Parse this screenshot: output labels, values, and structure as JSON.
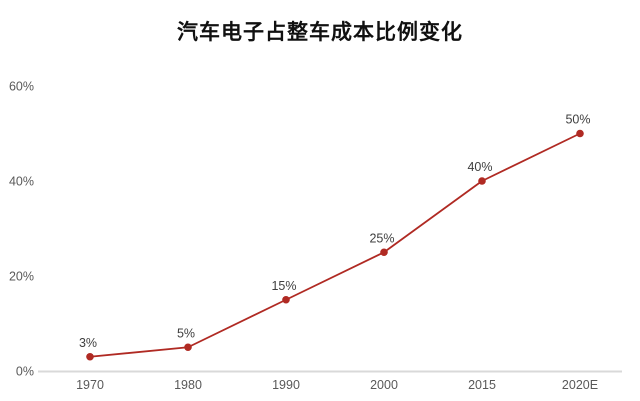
{
  "page": {
    "background": "#ffffff"
  },
  "chart_data": {
    "type": "line",
    "title": "汽车电子占整车成本比例变化",
    "categories": [
      "1970",
      "1980",
      "1990",
      "2000",
      "2015",
      "2020E"
    ],
    "values": [
      3,
      5,
      15,
      25,
      40,
      50
    ],
    "point_labels": [
      "3%",
      "5%",
      "15%",
      "25%",
      "40%",
      "50%"
    ],
    "xlabel": "",
    "ylabel": "",
    "ylim": [
      0,
      60
    ],
    "yticks": [
      0,
      20,
      40,
      60
    ],
    "ytick_labels": [
      "0%",
      "20%",
      "40%",
      "60%"
    ],
    "grid": false,
    "legend": "none",
    "marker": "circle",
    "colors": {
      "line": "#b02a23",
      "marker": "#b02a23",
      "axis_line": "#d9d9d9",
      "tick_label": "#595959",
      "point_label": "#3f3f3f",
      "title": "#111111"
    }
  }
}
